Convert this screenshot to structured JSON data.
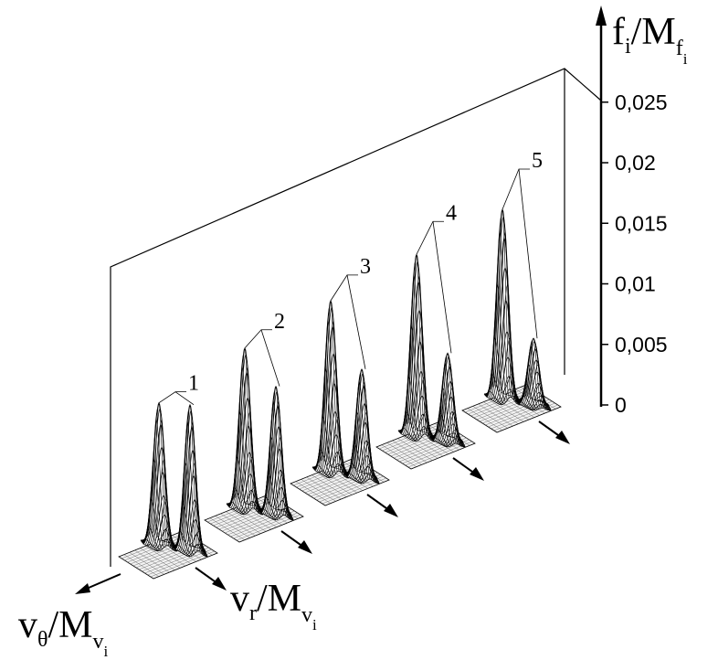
{
  "chart_data": {
    "type": "surface-3d",
    "z_axis": {
      "label_parts": [
        "f",
        "i",
        "/M",
        "f",
        "i"
      ],
      "ticks": [
        "0",
        "0,005",
        "0,01",
        "0,015",
        "0,02",
        "0,025"
      ],
      "tick_values": [
        0,
        0.005,
        0.01,
        0.015,
        0.02,
        0.025
      ],
      "range": [
        0,
        0.025
      ]
    },
    "x_axis": {
      "label_parts": [
        "v",
        "r",
        "/M",
        "v",
        "i"
      ]
    },
    "y_axis": {
      "label_parts": [
        "v",
        "θ",
        "/M",
        "v",
        "i"
      ]
    },
    "distributions": [
      {
        "label": "1",
        "peak_main": 0.0118,
        "peak_secondary": 0.0121
      },
      {
        "label": "2",
        "peak_main": 0.0133,
        "peak_secondary": 0.0106
      },
      {
        "label": "3",
        "peak_main": 0.0142,
        "peak_secondary": 0.009
      },
      {
        "label": "4",
        "peak_main": 0.015,
        "peak_secondary": 0.0073
      },
      {
        "label": "5",
        "peak_main": 0.0157,
        "peak_secondary": 0.0055
      }
    ]
  }
}
